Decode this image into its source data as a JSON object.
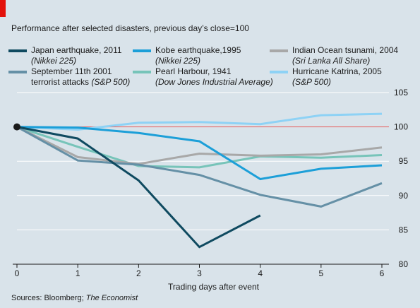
{
  "title": "Performance after selected disasters, previous day’s close=100",
  "source_prefix": "Sources: Bloomberg; ",
  "source_italic": "The Economist",
  "chart_data": {
    "type": "line",
    "xlabel": "Trading days after event",
    "ylabel": "",
    "x": [
      0,
      1,
      2,
      3,
      4,
      5,
      6
    ],
    "xlim": [
      0,
      6
    ],
    "ylim": [
      80,
      105
    ],
    "yticks": [
      80,
      85,
      90,
      95,
      100,
      105
    ],
    "xticks": [
      0,
      1,
      2,
      3,
      4,
      5,
      6
    ],
    "grid": true,
    "reference_line": 100,
    "reference_color": "#e05a5a",
    "series": [
      {
        "name": "Japan earthquake, 2011",
        "sub": "(Nikkei 225)",
        "color": "#0f4a60",
        "values": [
          100,
          98.3,
          92.2,
          82.5,
          87.1,
          null,
          null
        ]
      },
      {
        "name": "Kobe earthquake,1995",
        "sub": "(Nikkei 225)",
        "color": "#1c9fd8",
        "values": [
          100,
          99.9,
          99.1,
          97.9,
          92.4,
          93.9,
          94.4
        ]
      },
      {
        "name": "Indian Ocean tsunami, 2004",
        "sub": "(Sri Lanka All Share)",
        "color": "#a8a8a8",
        "values": [
          100,
          95.6,
          94.6,
          96.1,
          95.8,
          96.0,
          97.0
        ]
      },
      {
        "name": "September 11th 2001",
        "name2": "terrorist attacks",
        "sub": "(S&P 500)",
        "color": "#6590a6",
        "values": [
          100,
          95.1,
          94.5,
          93.0,
          90.1,
          88.4,
          91.8
        ]
      },
      {
        "name": "Pearl Harbour, 1941",
        "sub": "(Dow Jones Industrial Average)",
        "color": "#77c4b9",
        "values": [
          100,
          97.1,
          94.3,
          94.1,
          95.7,
          95.5,
          95.9
        ]
      },
      {
        "name": "Hurricane Katrina, 2005",
        "sub": "(S&P 500)",
        "color": "#8ed2f5",
        "values": [
          100,
          99.6,
          100.6,
          100.7,
          100.4,
          101.7,
          101.9
        ]
      }
    ]
  }
}
